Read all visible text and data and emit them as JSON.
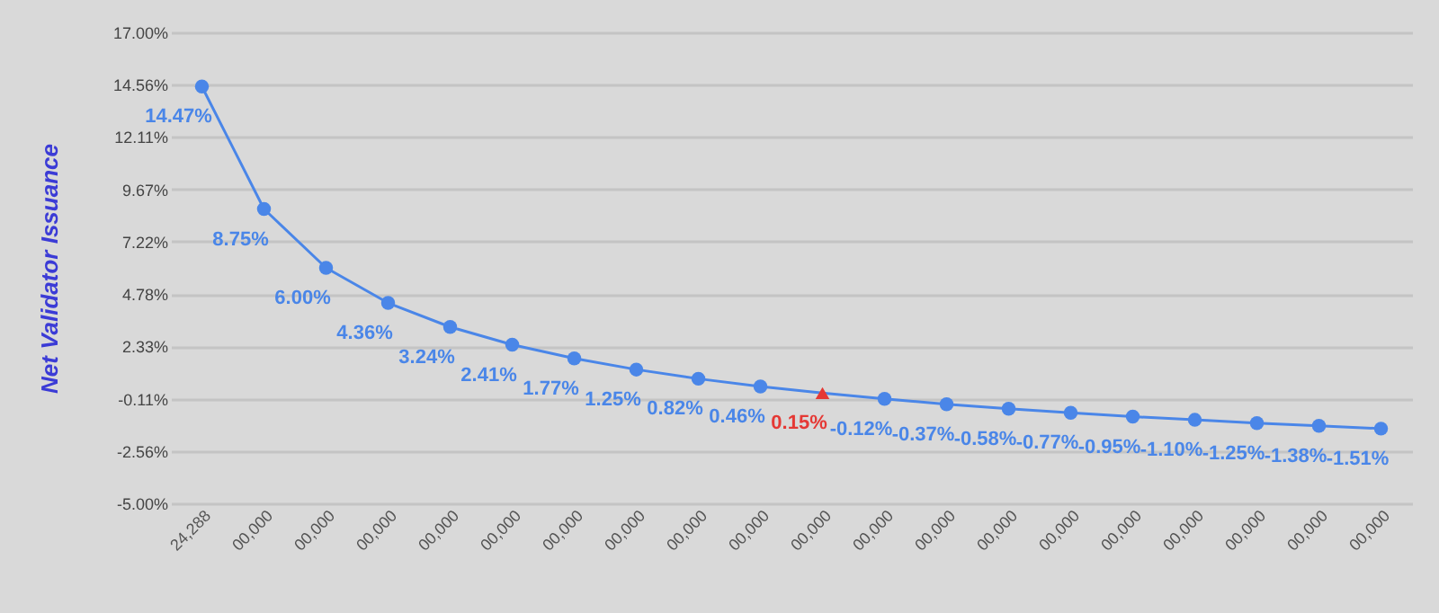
{
  "chart_data": {
    "type": "line",
    "ylabel": "Net Validator Issuance",
    "categories": [
      "24,288",
      "00,000",
      "00,000",
      "00,000",
      "00,000",
      "00,000",
      "00,000",
      "00,000",
      "00,000",
      "00,000",
      "00,000",
      "00,000",
      "00,000",
      "00,000",
      "00,000",
      "00,000",
      "00,000",
      "00,000",
      "00,000",
      "00,000"
    ],
    "series": [
      {
        "type": "line",
        "marker": "none",
        "color": "#4a86e8",
        "values": [
          14.47,
          8.75,
          6.0,
          4.36,
          3.24,
          2.41,
          1.77,
          1.25,
          0.82,
          0.46,
          0.15,
          -0.12,
          -0.37,
          -0.58,
          -0.77,
          -0.95,
          -1.1,
          -1.25,
          -1.38,
          -1.51
        ]
      },
      {
        "type": "scatter",
        "marker": "circle",
        "color": "#4a86e8",
        "values": [
          14.47,
          8.75,
          6.0,
          4.36,
          3.24,
          2.41,
          1.77,
          1.25,
          0.82,
          0.46,
          null,
          -0.12,
          -0.37,
          -0.58,
          -0.77,
          -0.95,
          -1.1,
          -1.25,
          -1.38,
          -1.51
        ],
        "value_labels": [
          "14.47%",
          "8.75%",
          "6.00%",
          "4.36%",
          "3.24%",
          "2.41%",
          "1.77%",
          "1.25%",
          "0.82%",
          "0.46%",
          null,
          "-0.12%",
          "-0.37%",
          "-0.58%",
          "-0.77%",
          "-0.95%",
          "-1.10%",
          "-1.25%",
          "-1.38%",
          "-1.51%"
        ]
      },
      {
        "type": "scatter",
        "marker": "triangle",
        "color": "#e53935",
        "values": [
          null,
          null,
          null,
          null,
          null,
          null,
          null,
          null,
          null,
          null,
          0.15,
          null,
          null,
          null,
          null,
          null,
          null,
          null,
          null,
          null
        ],
        "value_labels": [
          null,
          null,
          null,
          null,
          null,
          null,
          null,
          null,
          null,
          null,
          "0.15%",
          null,
          null,
          null,
          null,
          null,
          null,
          null,
          null,
          null
        ]
      }
    ],
    "ylim": [
      -5,
      17
    ],
    "yticks": [
      {
        "value": -5,
        "label": "-5.00%"
      },
      {
        "value": -2.56,
        "label": "-2.56%"
      },
      {
        "value": -0.11,
        "label": "-0.11%"
      },
      {
        "value": 2.33,
        "label": "2.33%"
      },
      {
        "value": 4.78,
        "label": "4.78%"
      },
      {
        "value": 7.22,
        "label": "7.22%"
      },
      {
        "value": 9.67,
        "label": "9.67%"
      },
      {
        "value": 12.11,
        "label": "12.11%"
      },
      {
        "value": 14.56,
        "label": "14.56%"
      },
      {
        "value": 17,
        "label": "17.00%"
      }
    ],
    "grid": "y",
    "line_style": "solid"
  }
}
